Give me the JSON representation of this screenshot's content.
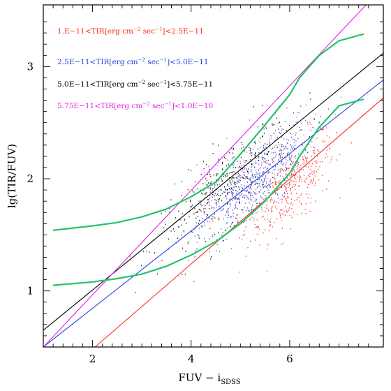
{
  "chart_data": {
    "type": "scatter",
    "title": "",
    "xlabel": "FUV − i",
    "xlabel_sub": "SDSS",
    "ylabel": "lg(TIR/FUV)",
    "xlim": [
      1,
      7.9
    ],
    "ylim": [
      0.5,
      3.55
    ],
    "x_ticks": [
      "2",
      "4",
      "6"
    ],
    "x_tick_values": [
      2,
      4,
      6
    ],
    "y_ticks": [
      "1",
      "2",
      "3"
    ],
    "y_tick_values": [
      1,
      2,
      3
    ],
    "legend": [
      {
        "label": "1.E−11<TIR[erg cm",
        "sup": "−2",
        "mid": " sec",
        "sup2": "−1",
        "end": "]<2.5E−11",
        "color": "#ff2a1a"
      },
      {
        "label": "2.5E−11<TIR[erg cm",
        "sup": "−2",
        "mid": " sec",
        "sup2": "−1",
        "end": "]<5.0E−11",
        "color": "#2244dd"
      },
      {
        "label": "5.0E−11<TIR[erg cm",
        "sup": "−2",
        "mid": " sec",
        "sup2": "−1",
        "end": "]<5.75E−11",
        "color": "#000000"
      },
      {
        "label": "5.75E−11<TIR[erg cm",
        "sup": "−2",
        "mid": " sec",
        "sup2": "−1",
        "end": "]<1.0E−10",
        "color": "#e020e0"
      }
    ],
    "fit_lines": [
      {
        "name": "red",
        "color": "#ff2a1a",
        "x": [
          2.05,
          7.9
        ],
        "y": [
          0.5,
          2.72
        ]
      },
      {
        "name": "blue",
        "color": "#2244dd",
        "x": [
          1.0,
          7.9
        ],
        "y": [
          0.5,
          2.88
        ]
      },
      {
        "name": "black",
        "color": "#000000",
        "x": [
          1.0,
          7.9
        ],
        "y": [
          0.65,
          3.12
        ]
      },
      {
        "name": "magenta",
        "color": "#e020e0",
        "x": [
          1.0,
          7.55
        ],
        "y": [
          0.5,
          3.55
        ]
      }
    ],
    "envelope_curves": [
      {
        "name": "upper",
        "color": "#22c46a",
        "x": [
          1.2,
          2.0,
          2.5,
          3.0,
          3.5,
          4.0,
          4.5,
          5.0,
          5.5,
          6.0,
          6.2,
          6.6,
          7.0,
          7.5
        ],
        "y": [
          1.54,
          1.58,
          1.61,
          1.66,
          1.73,
          1.84,
          1.97,
          2.22,
          2.48,
          2.75,
          2.9,
          3.1,
          3.23,
          3.29
        ]
      },
      {
        "name": "lower",
        "color": "#22c46a",
        "x": [
          1.2,
          2.0,
          2.5,
          3.0,
          3.5,
          4.0,
          4.5,
          5.0,
          5.5,
          6.0,
          6.2,
          6.6,
          7.0,
          7.5
        ],
        "y": [
          1.05,
          1.08,
          1.11,
          1.15,
          1.22,
          1.32,
          1.44,
          1.6,
          1.8,
          2.05,
          2.2,
          2.46,
          2.65,
          2.71
        ]
      }
    ],
    "scatter_clouds": [
      {
        "name": "red",
        "color": "#ff2a1a",
        "cx": 6.0,
        "cy": 1.95,
        "sx": 0.45,
        "sy": 0.18,
        "slope": 0.34,
        "n": 420
      },
      {
        "name": "blue",
        "color": "#2244dd",
        "cx": 5.3,
        "cy": 1.97,
        "sx": 0.55,
        "sy": 0.17,
        "slope": 0.36,
        "n": 520
      },
      {
        "name": "black",
        "color": "#000000",
        "cx": 4.7,
        "cy": 1.95,
        "sx": 0.65,
        "sy": 0.17,
        "slope": 0.36,
        "n": 380
      },
      {
        "name": "magenta",
        "color": "#e020e0",
        "cx": 5.0,
        "cy": 2.05,
        "sx": 0.6,
        "sy": 0.16,
        "slope": 0.36,
        "n": 90
      }
    ]
  }
}
